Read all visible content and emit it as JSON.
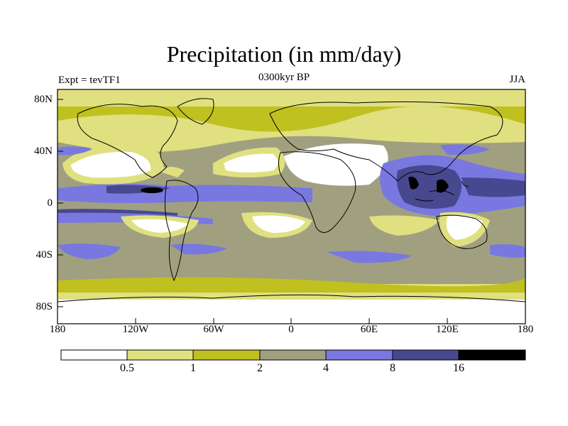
{
  "title": "Precipitation (in mm/day)",
  "subtitle_left": "Expt = tevTF1",
  "subtitle_center": "0300kyr BP",
  "subtitle_right": "JJA",
  "chart_data": {
    "type": "heatmap",
    "variable": "Precipitation",
    "units": "mm/day",
    "season": "JJA",
    "x_ticks": [
      "180",
      "120W",
      "60W",
      "0",
      "60E",
      "120E",
      "180"
    ],
    "y_ticks": [
      "80N",
      "40N",
      "0",
      "40S",
      "80S"
    ],
    "lon_range": [
      -180,
      180
    ],
    "lat_range": [
      -90,
      90
    ],
    "colorbar": {
      "levels": [
        "0.5",
        "1",
        "2",
        "4",
        "8",
        "16"
      ],
      "colors": [
        "#ffffff",
        "#e0e080",
        "#c0c020",
        "#a0a080",
        "#7878e0",
        "#484890",
        "#000000"
      ]
    }
  }
}
